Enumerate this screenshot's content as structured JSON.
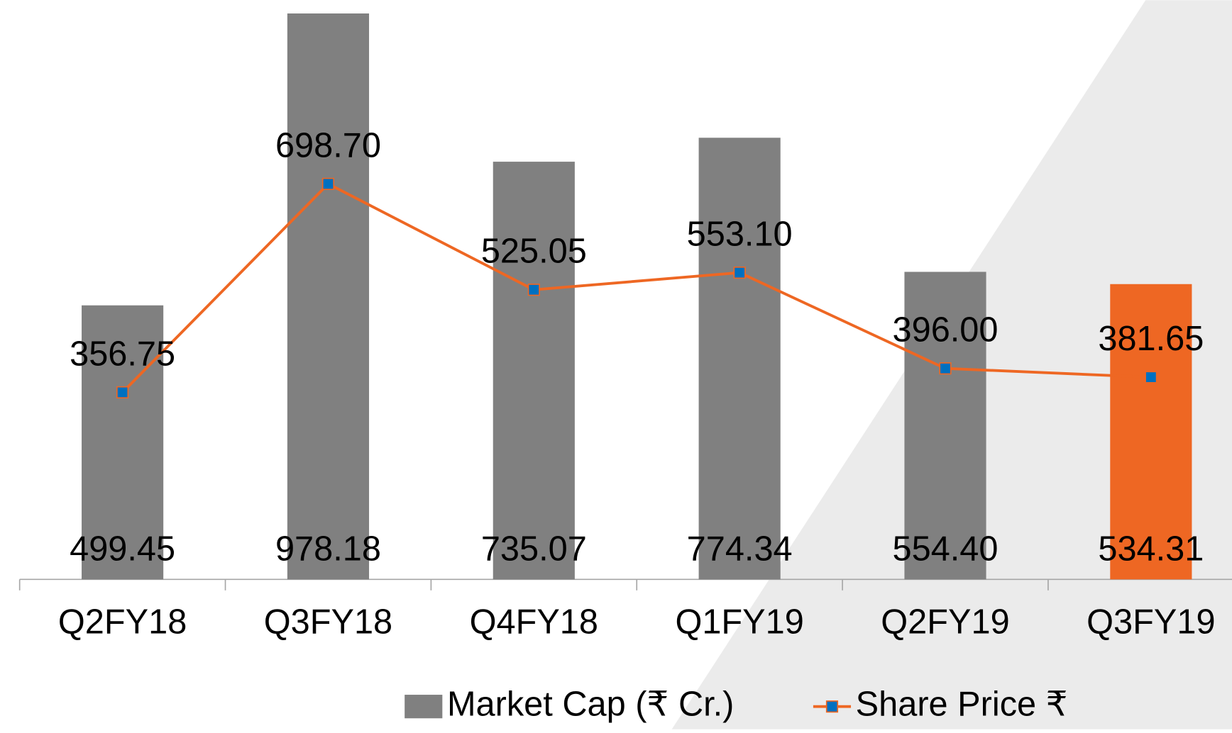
{
  "chart_data": {
    "type": "bar_line",
    "categories": [
      "Q2FY18",
      "Q3FY18",
      "Q4FY18",
      "Q1FY19",
      "Q2FY19",
      "Q3FY19"
    ],
    "series": [
      {
        "name": "Market Cap (₹ Cr.)",
        "type": "bar",
        "color": "#808080",
        "colors": [
          "#808080",
          "#808080",
          "#808080",
          "#808080",
          "#808080",
          "#ee6723"
        ],
        "values": [
          499.45,
          978.18,
          735.07,
          774.34,
          554.4,
          534.31
        ],
        "value_labels": [
          "499.45",
          "978.18",
          "735.07",
          "774.34",
          "554.40",
          "534.31"
        ]
      },
      {
        "name": "Share Price ₹",
        "type": "line",
        "axis": "y2",
        "color": "#ee6723",
        "marker_color": "#0070c0",
        "values": [
          356.75,
          698.7,
          525.05,
          553.1,
          396,
          381.65
        ],
        "value_labels": [
          "356.75",
          "698.70",
          "525.05",
          "553.10",
          "396.00",
          "381.65"
        ]
      }
    ],
    "ylim": [
      50,
      1000
    ],
    "y2lim": [
      50,
      1000
    ],
    "legend": "bottom"
  }
}
